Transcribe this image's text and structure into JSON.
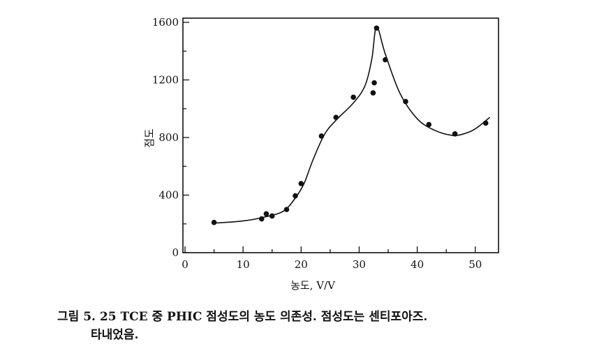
{
  "chart_data": {
    "type": "scatter",
    "xlabel": "농도, V/V",
    "ylabel": "점도",
    "xlim": [
      0,
      54
    ],
    "ylim": [
      0,
      1600
    ],
    "x_ticks": [
      0,
      10,
      20,
      30,
      40,
      50
    ],
    "y_ticks": [
      0,
      400,
      800,
      1200,
      1600
    ],
    "x_tick_labels": [
      "0",
      "10",
      "20",
      "30",
      "40",
      "50"
    ],
    "y_tick_labels": [
      "0",
      "400",
      "800",
      "1200",
      "1600"
    ],
    "grid": false,
    "series": [
      {
        "kind": "points",
        "x": [
          5,
          13.2,
          14,
          15,
          17.5,
          19,
          20,
          23.5,
          26,
          29,
          32.4,
          32.6,
          33,
          34.5,
          38,
          42,
          46.5,
          51.8
        ],
        "y": [
          210,
          235,
          270,
          255,
          300,
          395,
          480,
          810,
          940,
          1080,
          1110,
          1180,
          1560,
          1340,
          1050,
          890,
          825,
          900
        ]
      },
      {
        "kind": "fitted-curve",
        "x": [
          5,
          10,
          14,
          17,
          19,
          20.5,
          22,
          24,
          26,
          29,
          31,
          32.2,
          33,
          34.5,
          37,
          40,
          43,
          46,
          48,
          50,
          52.5
        ],
        "y": [
          205,
          220,
          250,
          290,
          380,
          480,
          640,
          820,
          920,
          1040,
          1160,
          1350,
          1570,
          1380,
          1110,
          930,
          850,
          815,
          825,
          860,
          940
        ]
      }
    ]
  },
  "caption": {
    "line1": "그림 5. 25  TCE 중 PHIC 점성도의 농도 의존성.  점성도는  센티포아즈.",
    "line2": "타내었음."
  }
}
